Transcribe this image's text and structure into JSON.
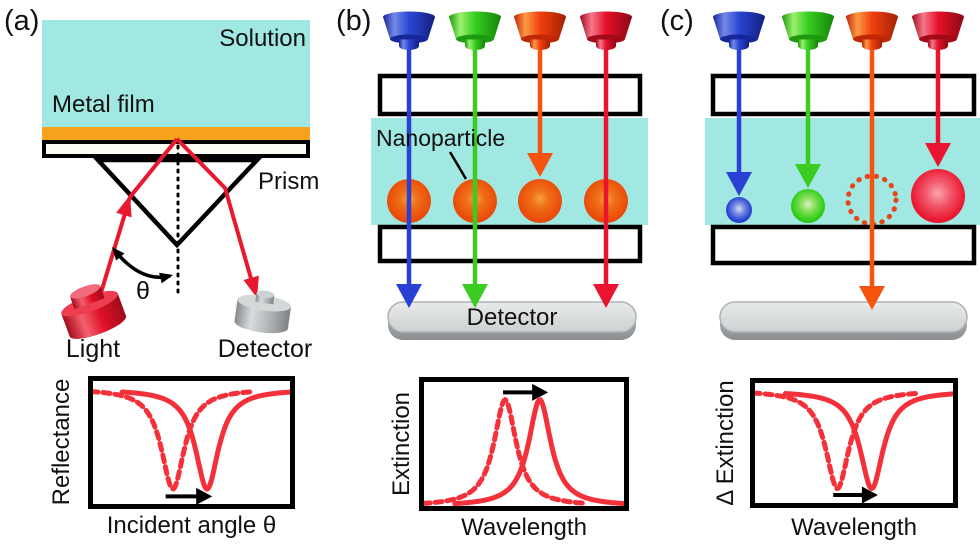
{
  "panels": {
    "a": {
      "tag": "(a)",
      "labels": {
        "solution": "Solution",
        "metal_film": "Metal film",
        "prism": "Prism",
        "theta": "θ",
        "light": "Light",
        "detector": "Detector"
      }
    },
    "b": {
      "tag": "(b)",
      "labels": {
        "nanoparticle": "Nanoparticle",
        "detector": "Detector"
      },
      "light_sources": [
        "blue",
        "green",
        "orange-red",
        "red"
      ]
    },
    "c": {
      "tag": "(c)",
      "light_sources": [
        "blue",
        "green",
        "orange-red",
        "red"
      ]
    }
  },
  "chart_data": [
    {
      "id": "a",
      "type": "line",
      "title": "",
      "xlabel": "Incident angle θ",
      "ylabel": "Reflectance",
      "axes_ticks": false,
      "grid": false,
      "legend": "none",
      "color": "#F4303A",
      "series": [
        {
          "name": "initial dashed dip",
          "style": "dashed",
          "shape": "dip",
          "center": 0.41,
          "hwhm": 0.068,
          "far": 0.095,
          "at_center": 0.85,
          "xstart": 0.015,
          "xend": 0.8
        },
        {
          "name": "shifted solid dip",
          "style": "solid",
          "shape": "dip",
          "center": 0.575,
          "hwhm": 0.068,
          "far": 0.1,
          "at_center": 0.85,
          "xstart": 0.165,
          "xend": 0.985
        }
      ],
      "shift_arrow": {
        "direction": "right",
        "x1": 0.375,
        "x2": 0.6,
        "y": 0.905
      }
    },
    {
      "id": "b",
      "type": "line",
      "title": "",
      "xlabel": "Wavelength",
      "ylabel": "Extinction",
      "axes_ticks": false,
      "grid": false,
      "legend": "none",
      "color": "#F4303A",
      "series": [
        {
          "name": "initial dashed peak",
          "style": "dashed",
          "shape": "peak",
          "center": 0.41,
          "hwhm": 0.065,
          "far": 0.965,
          "at_center": 0.17,
          "xstart": 0.02,
          "xend": 0.8
        },
        {
          "name": "shifted solid peak",
          "style": "solid",
          "shape": "peak",
          "center": 0.575,
          "hwhm": 0.065,
          "far": 0.965,
          "at_center": 0.17,
          "xstart": 0.17,
          "xend": 0.985
        }
      ],
      "shift_arrow": {
        "direction": "right",
        "x1": 0.4,
        "x2": 0.615,
        "y": 0.115
      }
    },
    {
      "id": "c",
      "type": "line",
      "title": "",
      "xlabel": "Wavelength",
      "ylabel": "Δ Extinction",
      "axes_ticks": false,
      "grid": false,
      "legend": "none",
      "color": "#F4303A",
      "series": [
        {
          "name": "initial dashed dip",
          "style": "dashed",
          "shape": "dip",
          "center": 0.42,
          "hwhm": 0.068,
          "far": 0.095,
          "at_center": 0.85,
          "xstart": 0.015,
          "xend": 0.8
        },
        {
          "name": "shifted solid dip",
          "style": "solid",
          "shape": "dip",
          "center": 0.585,
          "hwhm": 0.068,
          "far": 0.1,
          "at_center": 0.85,
          "xstart": 0.17,
          "xend": 0.985
        }
      ],
      "shift_arrow": {
        "direction": "right",
        "x1": 0.4,
        "x2": 0.615,
        "y": 0.9
      }
    }
  ],
  "colors": {
    "solution_cyan": "#A2E8E2",
    "metal_film_orange": "#F6A21D",
    "laser_ray_red": "#E8182E",
    "curve_red": "#F4303A",
    "beam_blue": "#2A3FD4",
    "beam_green": "#3BCC22",
    "beam_orange": "#F5530E",
    "beam_red": "#EA1430",
    "nanoparticle_orange": "#EA4C0A",
    "detector_gray": "#C9CCCE",
    "outline_black": "#000000"
  }
}
